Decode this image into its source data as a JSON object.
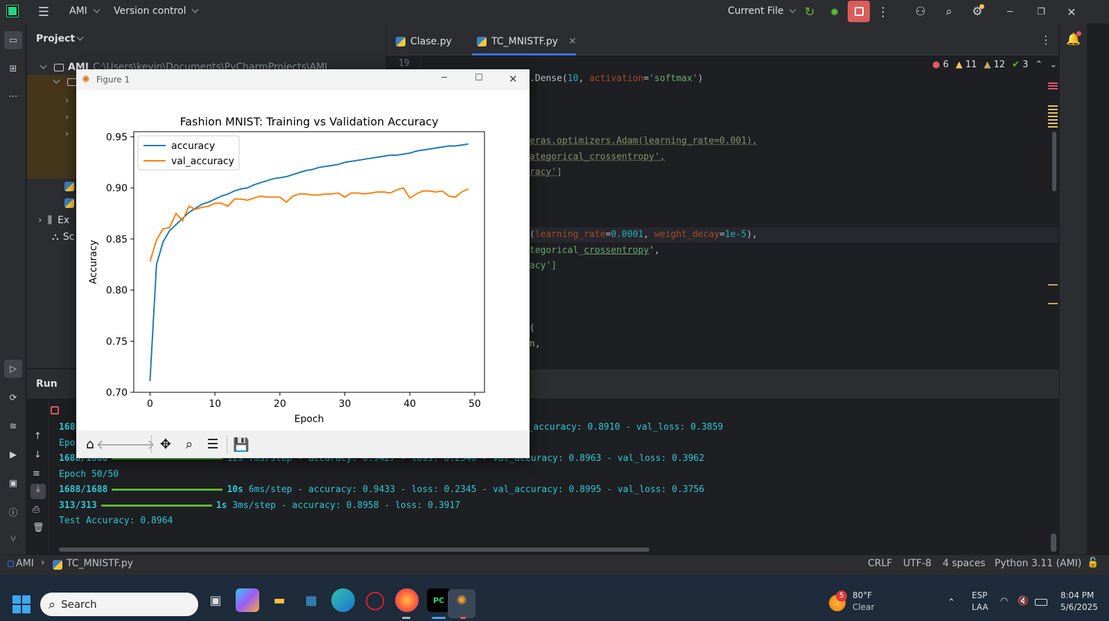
{
  "titlebar": {
    "project": "AMI",
    "vcs": "Version control",
    "run_config": "Current File",
    "window_controls": [
      "minimize-icon",
      "restore-icon",
      "close-icon"
    ]
  },
  "project_panel": {
    "title": "Project",
    "root_name": "AMI",
    "root_path": "C:\\Users\\kevin\\Documents\\PyCharmProjects\\AMI",
    "ext_label": "Ex",
    "scratch_label": "Sc"
  },
  "tabs": [
    {
      "label": "Clase.py",
      "active": false
    },
    {
      "label": "TC_MNISTF.py",
      "active": true
    }
  ],
  "editor": {
    "line_number": "19",
    "inspections": {
      "errors": "6",
      "warnings_a": "11",
      "warnings_b": "12",
      "ok": "3"
    },
    "lines": {
      "l1a": ".Dense(",
      "l1b": "10",
      "l1c": ", ",
      "l1d": "activation",
      "l1e": "=",
      "l1f": "'softmax'",
      "l1g": ")",
      "l2": "eras.optimizers.Adam(learning_rate=0.001),",
      "l3": "ategorical_crossentropy',",
      "l4": "racy']",
      "l5a": "(",
      "l5b": "learning_rate",
      "l5c": "=",
      "l5d": "0.0001",
      "l5e": ", ",
      "l5f": "weight_decay",
      "l5g": "=",
      "l5h": "1e-5",
      "l5i": "),",
      "l6a": "tegorical_",
      "l6b": "crossentropy",
      "l6c": "',",
      "l7": "acy']",
      "l8": "(",
      "l9": "n,"
    }
  },
  "run": {
    "tab_label": "Run",
    "console": [
      {
        "id": "c1",
        "prefix": "168",
        "rest": "_accuracy: 0.8910 - val_loss: 0.3859"
      },
      {
        "id": "c2",
        "prefix": "Epo"
      },
      {
        "id": "c3",
        "prefix": "1688/1688",
        "rest": "12s 7ms/step - accuracy: 0.9427 - loss: 0.2340 - val_accuracy: 0.8963 - val_loss: 0.3962"
      },
      {
        "id": "c4",
        "text": "Epoch 50/50"
      },
      {
        "id": "c5",
        "prefix": "1688/1688",
        "time": "10s",
        "rest": "6ms/step - accuracy: 0.9433 - loss: 0.2345 - val_accuracy: 0.8995 - val_loss: 0.3756"
      },
      {
        "id": "c6",
        "prefix": "313/313",
        "time": "1s",
        "rest": "3ms/step - accuracy: 0.8958 - loss: 0.3917"
      },
      {
        "id": "c7",
        "text": "Test Accuracy: 0.8964"
      }
    ]
  },
  "statusbar": {
    "crumb_project": "AMI",
    "crumb_file": "TC_MNISTF.py",
    "line_sep": "CRLF",
    "encoding": "UTF-8",
    "indent": "4 spaces",
    "interpreter": "Python 3.11 (AMI)"
  },
  "taskbar": {
    "search_placeholder": "Search",
    "weather_badge": "5",
    "weather_temp": "80°F",
    "weather_desc": "Clear",
    "lang_top": "ESP",
    "lang_bottom": "LAA",
    "time": "8:04 PM",
    "date": "5/6/2025"
  },
  "figure": {
    "window_title": "Figure 1"
  },
  "chart_data": {
    "type": "line",
    "title": "Fashion MNIST: Training vs Validation Accuracy",
    "xlabel": "Epoch",
    "ylabel": "Accuracy",
    "xlim": [
      -2.5,
      51.5
    ],
    "ylim": [
      0.7,
      0.955
    ],
    "xticks": [
      0,
      10,
      20,
      30,
      40,
      50
    ],
    "yticks": [
      0.7,
      0.75,
      0.8,
      0.85,
      0.9,
      0.95
    ],
    "ytick_labels": [
      "0.70",
      "0.75",
      "0.80",
      "0.85",
      "0.90",
      "0.95"
    ],
    "legend_position": "upper-left",
    "x": [
      0,
      1,
      2,
      3,
      4,
      5,
      6,
      7,
      8,
      9,
      10,
      11,
      12,
      13,
      14,
      15,
      16,
      17,
      18,
      19,
      20,
      21,
      22,
      23,
      24,
      25,
      26,
      27,
      28,
      29,
      30,
      31,
      32,
      33,
      34,
      35,
      36,
      37,
      38,
      39,
      40,
      41,
      42,
      43,
      44,
      45,
      46,
      47,
      48,
      49
    ],
    "series": [
      {
        "name": "accuracy",
        "color": "#1f77b4",
        "values": [
          0.711,
          0.825,
          0.847,
          0.858,
          0.864,
          0.87,
          0.876,
          0.88,
          0.884,
          0.886,
          0.889,
          0.892,
          0.894,
          0.897,
          0.899,
          0.9,
          0.903,
          0.905,
          0.907,
          0.909,
          0.91,
          0.911,
          0.913,
          0.915,
          0.917,
          0.918,
          0.92,
          0.921,
          0.922,
          0.923,
          0.925,
          0.926,
          0.927,
          0.928,
          0.929,
          0.93,
          0.931,
          0.932,
          0.932,
          0.933,
          0.934,
          0.936,
          0.937,
          0.938,
          0.939,
          0.94,
          0.941,
          0.941,
          0.942,
          0.943
        ]
      },
      {
        "name": "val_accuracy",
        "color": "#ff7f0e",
        "values": [
          0.828,
          0.849,
          0.86,
          0.861,
          0.875,
          0.868,
          0.882,
          0.879,
          0.881,
          0.882,
          0.885,
          0.885,
          0.882,
          0.889,
          0.889,
          0.888,
          0.89,
          0.892,
          0.891,
          0.891,
          0.891,
          0.886,
          0.892,
          0.894,
          0.894,
          0.893,
          0.893,
          0.894,
          0.894,
          0.895,
          0.891,
          0.895,
          0.895,
          0.894,
          0.895,
          0.896,
          0.896,
          0.895,
          0.898,
          0.9,
          0.89,
          0.894,
          0.897,
          0.897,
          0.896,
          0.897,
          0.892,
          0.891,
          0.896,
          0.899
        ]
      }
    ]
  }
}
